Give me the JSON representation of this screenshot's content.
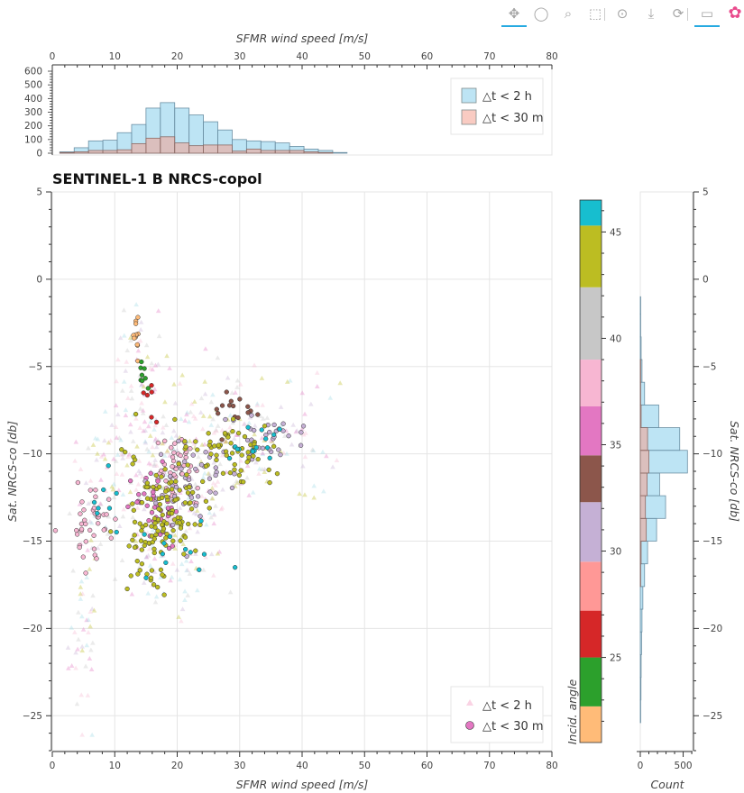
{
  "toolbar": {
    "tools": [
      {
        "icon": "pan-icon",
        "glyph": "✥",
        "active": true
      },
      {
        "icon": "lasso-select-icon",
        "glyph": "◯",
        "active": false
      },
      {
        "icon": "box-zoom-icon",
        "glyph": "⌕",
        "active": false
      },
      {
        "icon": "box-select-icon",
        "glyph": "⬚",
        "active": false
      },
      {
        "icon": "tap-select-icon",
        "glyph": "⊙",
        "active": false
      },
      {
        "icon": "save-icon",
        "glyph": "⤓",
        "active": false
      },
      {
        "icon": "reset-icon",
        "glyph": "⟳",
        "active": false
      },
      {
        "icon": "hover-icon",
        "glyph": "▭",
        "active": true
      },
      {
        "icon": "bokeh-logo-icon",
        "glyph": "✿",
        "active": false
      }
    ]
  },
  "chart_data": [
    {
      "id": "top-histogram",
      "type": "bar",
      "xlabel": "SFMR wind speed [m/s]",
      "xlim": [
        0,
        80
      ],
      "ylim": [
        0,
        600
      ],
      "xticks": [
        0,
        10,
        20,
        30,
        40,
        50,
        60,
        70,
        80
      ],
      "yticks": [
        0,
        100,
        200,
        300,
        400,
        500,
        600
      ],
      "bin_edges": [
        1.2,
        3.5,
        5.8,
        8.1,
        10.4,
        12.7,
        15.0,
        17.3,
        19.6,
        21.9,
        24.2,
        26.5,
        28.8,
        31.1,
        33.4,
        35.7,
        38.0,
        40.3,
        42.6,
        44.9,
        47.2
      ],
      "series": [
        {
          "name": "△t < 2 h",
          "color": "#87ceeb",
          "values": [
            10,
            40,
            90,
            95,
            150,
            210,
            330,
            370,
            330,
            280,
            230,
            170,
            100,
            90,
            85,
            75,
            50,
            30,
            20,
            5
          ]
        },
        {
          "name": "△t < 30 m",
          "color": "#f4a090",
          "values": [
            5,
            10,
            20,
            20,
            25,
            70,
            110,
            120,
            75,
            55,
            60,
            60,
            15,
            30,
            20,
            20,
            20,
            10,
            5,
            0
          ]
        }
      ],
      "legend": "top-right"
    },
    {
      "id": "scatter",
      "type": "scatter",
      "title": "SENTINEL-1 B NRCS-copol",
      "xlabel": "SFMR wind speed [m/s]",
      "ylabel": "Sat. NRCS-co [db]",
      "xlim": [
        0,
        80
      ],
      "ylim": [
        -27,
        5
      ],
      "xticks": [
        0,
        10,
        20,
        30,
        40,
        50,
        60,
        70,
        80
      ],
      "yticks": [
        -25,
        -20,
        -15,
        -10,
        -5,
        0,
        5
      ],
      "ytick_labels": [
        "−25",
        "−20",
        "−15",
        "−10",
        "−5",
        "0",
        "5"
      ],
      "grid": true,
      "legend": "bottom-right",
      "color_by": "Incid. angle",
      "series": [
        {
          "name": "△t < 2 h",
          "marker": "triangle",
          "opacity": 0.25,
          "clusters": [
            {
              "cx": 5,
              "cy": -19,
              "sx": 1.2,
              "sy": 4,
              "n": 50
            },
            {
              "cx": 14,
              "cy": -5,
              "sx": 2,
              "sy": 1.5,
              "n": 40
            },
            {
              "cx": 12,
              "cy": -10,
              "sx": 4,
              "sy": 2,
              "n": 80
            },
            {
              "cx": 22,
              "cy": -8,
              "sx": 5,
              "sy": 1.5,
              "n": 80
            },
            {
              "cx": 20,
              "cy": -13,
              "sx": 4,
              "sy": 2,
              "n": 120
            },
            {
              "cx": 30,
              "cy": -10,
              "sx": 5,
              "sy": 1.5,
              "n": 70
            },
            {
              "cx": 38,
              "cy": -9,
              "sx": 4,
              "sy": 1.5,
              "n": 40
            },
            {
              "cx": 20,
              "cy": -17,
              "sx": 4,
              "sy": 1.5,
              "n": 40
            },
            {
              "cx": 8,
              "cy": -13,
              "sx": 2,
              "sy": 2,
              "n": 30
            }
          ]
        },
        {
          "name": "△t < 30 m",
          "marker": "circle",
          "opacity": 1,
          "clusters": [
            {
              "cx": 13.5,
              "cy": -3.2,
              "sx": 0.4,
              "sy": 0.8,
              "n": 12,
              "angle": 22
            },
            {
              "cx": 14.5,
              "cy": -5.3,
              "sx": 0.4,
              "sy": 0.6,
              "n": 8,
              "angle": 23
            },
            {
              "cx": 16,
              "cy": -7,
              "sx": 0.5,
              "sy": 0.4,
              "n": 6,
              "angle": 27
            },
            {
              "cx": 30,
              "cy": -7.5,
              "sx": 2.5,
              "sy": 0.5,
              "n": 15,
              "angle": 34
            },
            {
              "cx": 6,
              "cy": -14,
              "sx": 2,
              "sy": 1,
              "n": 40,
              "angle": 37
            },
            {
              "cx": 20,
              "cy": -11,
              "sx": 2.5,
              "sy": 1,
              "n": 50,
              "angle": 37
            },
            {
              "cx": 17,
              "cy": -13,
              "sx": 2,
              "sy": 1.2,
              "n": 40,
              "angle": 36
            },
            {
              "cx": 22,
              "cy": -12,
              "sx": 3,
              "sy": 1.2,
              "n": 40,
              "angle": 31
            },
            {
              "cx": 35,
              "cy": -9,
              "sx": 3,
              "sy": 0.8,
              "n": 30,
              "angle": 31
            },
            {
              "cx": 18,
              "cy": -13,
              "sx": 3,
              "sy": 1.5,
              "n": 90,
              "angle": 44
            },
            {
              "cx": 28,
              "cy": -10,
              "sx": 4,
              "sy": 0.8,
              "n": 60,
              "angle": 44
            },
            {
              "cx": 16,
              "cy": -15,
              "sx": 2,
              "sy": 0.6,
              "n": 25,
              "angle": 44
            },
            {
              "cx": 16,
              "cy": -17,
              "sx": 2,
              "sy": 0.5,
              "n": 15,
              "angle": 44
            },
            {
              "cx": 32,
              "cy": -9.5,
              "sx": 3,
              "sy": 0.6,
              "n": 15,
              "angle": 46
            },
            {
              "cx": 20,
              "cy": -15.5,
              "sx": 4,
              "sy": 1,
              "n": 12,
              "angle": 46
            },
            {
              "cx": 9,
              "cy": -13.5,
              "sx": 1.5,
              "sy": 1.5,
              "n": 8,
              "angle": 46
            }
          ]
        }
      ]
    },
    {
      "id": "colorbar",
      "type": "heatmap",
      "label": "Incid. angle",
      "range": [
        21,
        46.5
      ],
      "ticks": [
        25,
        30,
        35,
        40,
        45
      ],
      "bands": [
        {
          "from": 21.0,
          "to": 22.7,
          "color": "#ffbb78"
        },
        {
          "from": 22.7,
          "to": 25.0,
          "color": "#2ca02c"
        },
        {
          "from": 25.0,
          "to": 27.2,
          "color": "#d62728"
        },
        {
          "from": 27.2,
          "to": 29.5,
          "color": "#ff9896"
        },
        {
          "from": 29.5,
          "to": 32.3,
          "color": "#c5b0d5"
        },
        {
          "from": 32.3,
          "to": 34.5,
          "color": "#8c564b"
        },
        {
          "from": 34.5,
          "to": 36.8,
          "color": "#e377c2"
        },
        {
          "from": 36.8,
          "to": 39.0,
          "color": "#f7b6d2"
        },
        {
          "from": 39.0,
          "to": 42.4,
          "color": "#c7c7c7"
        },
        {
          "from": 42.4,
          "to": 45.3,
          "color": "#bcbd22"
        },
        {
          "from": 45.3,
          "to": 46.5,
          "color": "#17becf"
        }
      ]
    },
    {
      "id": "side-histogram",
      "type": "bar",
      "orientation": "horizontal",
      "xlabel": "Count",
      "ylabel": "Sat. NRCS-co [db]",
      "xlim": [
        -10,
        610
      ],
      "ylim": [
        -27,
        5
      ],
      "xticks": [
        0,
        500
      ],
      "yticks": [
        -25,
        -20,
        -15,
        -10,
        -5,
        0,
        5
      ],
      "ytick_labels": [
        "−25",
        "−20",
        "−15",
        "−10",
        "−5",
        "0",
        "5"
      ],
      "bin_edges": [
        -25.4,
        -24.1,
        -22.8,
        -21.5,
        -20.2,
        -18.9,
        -17.6,
        -16.3,
        -15.0,
        -13.7,
        -12.4,
        -11.1,
        -9.8,
        -8.5,
        -7.2,
        -5.9,
        -4.6,
        -3.3,
        -2.0,
        -1.0
      ],
      "series": [
        {
          "name": "△t < 2 h",
          "color": "#87ceeb",
          "values": [
            5,
            8,
            10,
            15,
            20,
            30,
            50,
            85,
            190,
            295,
            225,
            550,
            460,
            215,
            50,
            20,
            10,
            5,
            5
          ]
        },
        {
          "name": "△t < 30 m",
          "color": "#f4a090",
          "values": [
            0,
            0,
            0,
            0,
            0,
            0,
            5,
            10,
            70,
            60,
            80,
            100,
            85,
            10,
            5,
            5,
            0,
            0,
            0
          ]
        }
      ]
    }
  ]
}
